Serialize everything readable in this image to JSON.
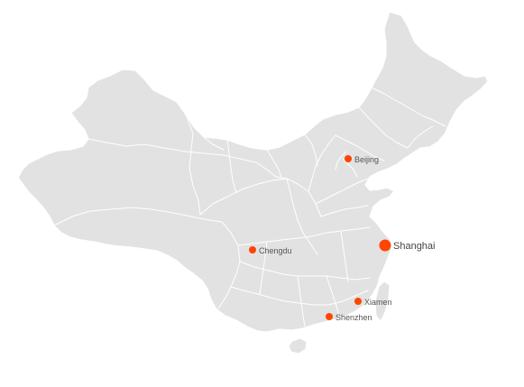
{
  "map": {
    "region": "China",
    "land_color": "#e2e2e2",
    "border_color": "#ffffff",
    "marker_color": "#ff4500",
    "background_color": "#ffffff"
  },
  "cities": [
    {
      "id": "beijing",
      "name": "Beijing",
      "size": "small"
    },
    {
      "id": "shanghai",
      "name": "Shanghai",
      "size": "large"
    },
    {
      "id": "chengdu",
      "name": "Chengdu",
      "size": "small"
    },
    {
      "id": "xiamen",
      "name": "Xiamen",
      "size": "small"
    },
    {
      "id": "shenzhen",
      "name": "Shenzhen",
      "size": "small"
    }
  ]
}
